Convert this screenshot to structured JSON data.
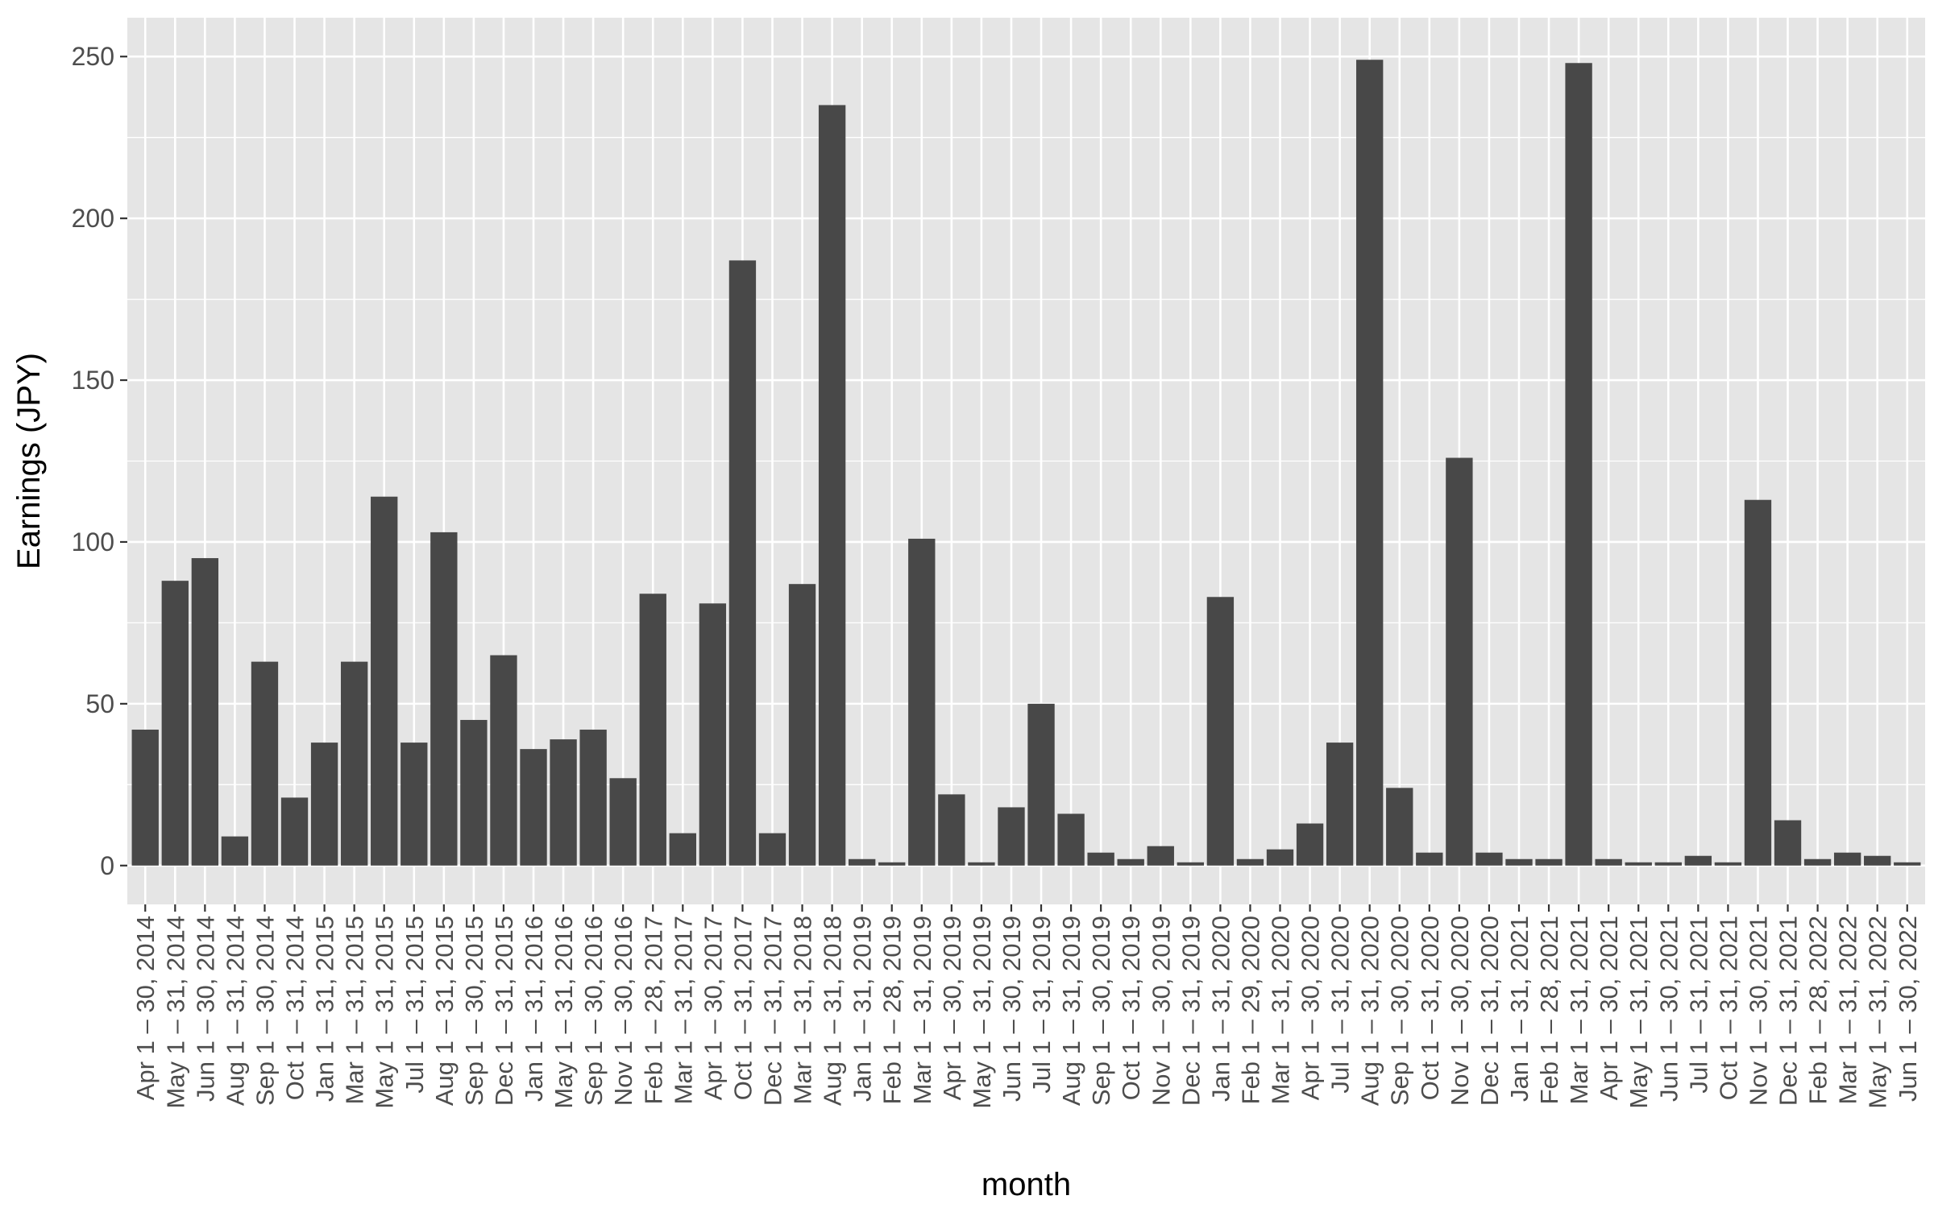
{
  "chart_data": {
    "type": "bar",
    "title": "",
    "xlabel": "month",
    "ylabel": "Earnings (JPY)",
    "ylim": [
      -12,
      262
    ],
    "yticks": [
      0,
      50,
      100,
      150,
      200,
      250
    ],
    "grid": true,
    "legend": "none",
    "colors": {
      "bar": "#484848",
      "panel": "#e5e5e5",
      "grid": "#ffffff",
      "tick_text": "#4d4d4d",
      "axis_title": "#000000"
    },
    "categories": [
      "Apr 1 – 30, 2014",
      "May 1 – 31, 2014",
      "Jun 1 – 30, 2014",
      "Aug 1 – 31, 2014",
      "Sep 1 – 30, 2014",
      "Oct 1 – 31, 2014",
      "Jan 1 – 31, 2015",
      "Mar 1 – 31, 2015",
      "May 1 – 31, 2015",
      "Jul 1 – 31, 2015",
      "Aug 1 – 31, 2015",
      "Sep 1 – 30, 2015",
      "Dec 1 – 31, 2015",
      "Jan 1 – 31, 2016",
      "May 1 – 31, 2016",
      "Sep 1 – 30, 2016",
      "Nov 1 – 30, 2016",
      "Feb 1 – 28, 2017",
      "Mar 1 – 31, 2017",
      "Apr 1 – 30, 2017",
      "Oct 1 – 31, 2017",
      "Dec 1 – 31, 2017",
      "Mar 1 – 31, 2018",
      "Aug 1 – 31, 2018",
      "Jan 1 – 31, 2019",
      "Feb 1 – 28, 2019",
      "Mar 1 – 31, 2019",
      "Apr 1 – 30, 2019",
      "May 1 – 31, 2019",
      "Jun 1 – 30, 2019",
      "Jul 1 – 31, 2019",
      "Aug 1 – 31, 2019",
      "Sep 1 – 30, 2019",
      "Oct 1 – 31, 2019",
      "Nov 1 – 30, 2019",
      "Dec 1 – 31, 2019",
      "Jan 1 – 31, 2020",
      "Feb 1 – 29, 2020",
      "Mar 1 – 31, 2020",
      "Apr 1 – 30, 2020",
      "Jul 1 – 31, 2020",
      "Aug 1 – 31, 2020",
      "Sep 1 – 30, 2020",
      "Oct 1 – 31, 2020",
      "Nov 1 – 30, 2020",
      "Dec 1 – 31, 2020",
      "Jan 1 – 31, 2021",
      "Feb 1 – 28, 2021",
      "Mar 1 – 31, 2021",
      "Apr 1 – 30, 2021",
      "May 1 – 31, 2021",
      "Jun 1 – 30, 2021",
      "Jul 1 – 31, 2021",
      "Oct 1 – 31, 2021",
      "Nov 1 – 30, 2021",
      "Dec 1 – 31, 2021",
      "Feb 1 – 28, 2022",
      "Mar 1 – 31, 2022",
      "May 1 – 31, 2022",
      "Jun 1 – 30, 2022"
    ],
    "values": [
      42,
      88,
      95,
      9,
      63,
      21,
      38,
      63,
      114,
      38,
      103,
      45,
      65,
      36,
      39,
      42,
      27,
      84,
      10,
      81,
      187,
      10,
      87,
      235,
      2,
      1,
      101,
      22,
      1,
      18,
      50,
      16,
      4,
      2,
      6,
      1,
      83,
      2,
      5,
      13,
      38,
      249,
      24,
      4,
      126,
      4,
      2,
      2,
      248,
      2,
      1,
      1,
      3,
      1,
      113,
      14,
      2,
      4,
      3,
      1
    ]
  }
}
